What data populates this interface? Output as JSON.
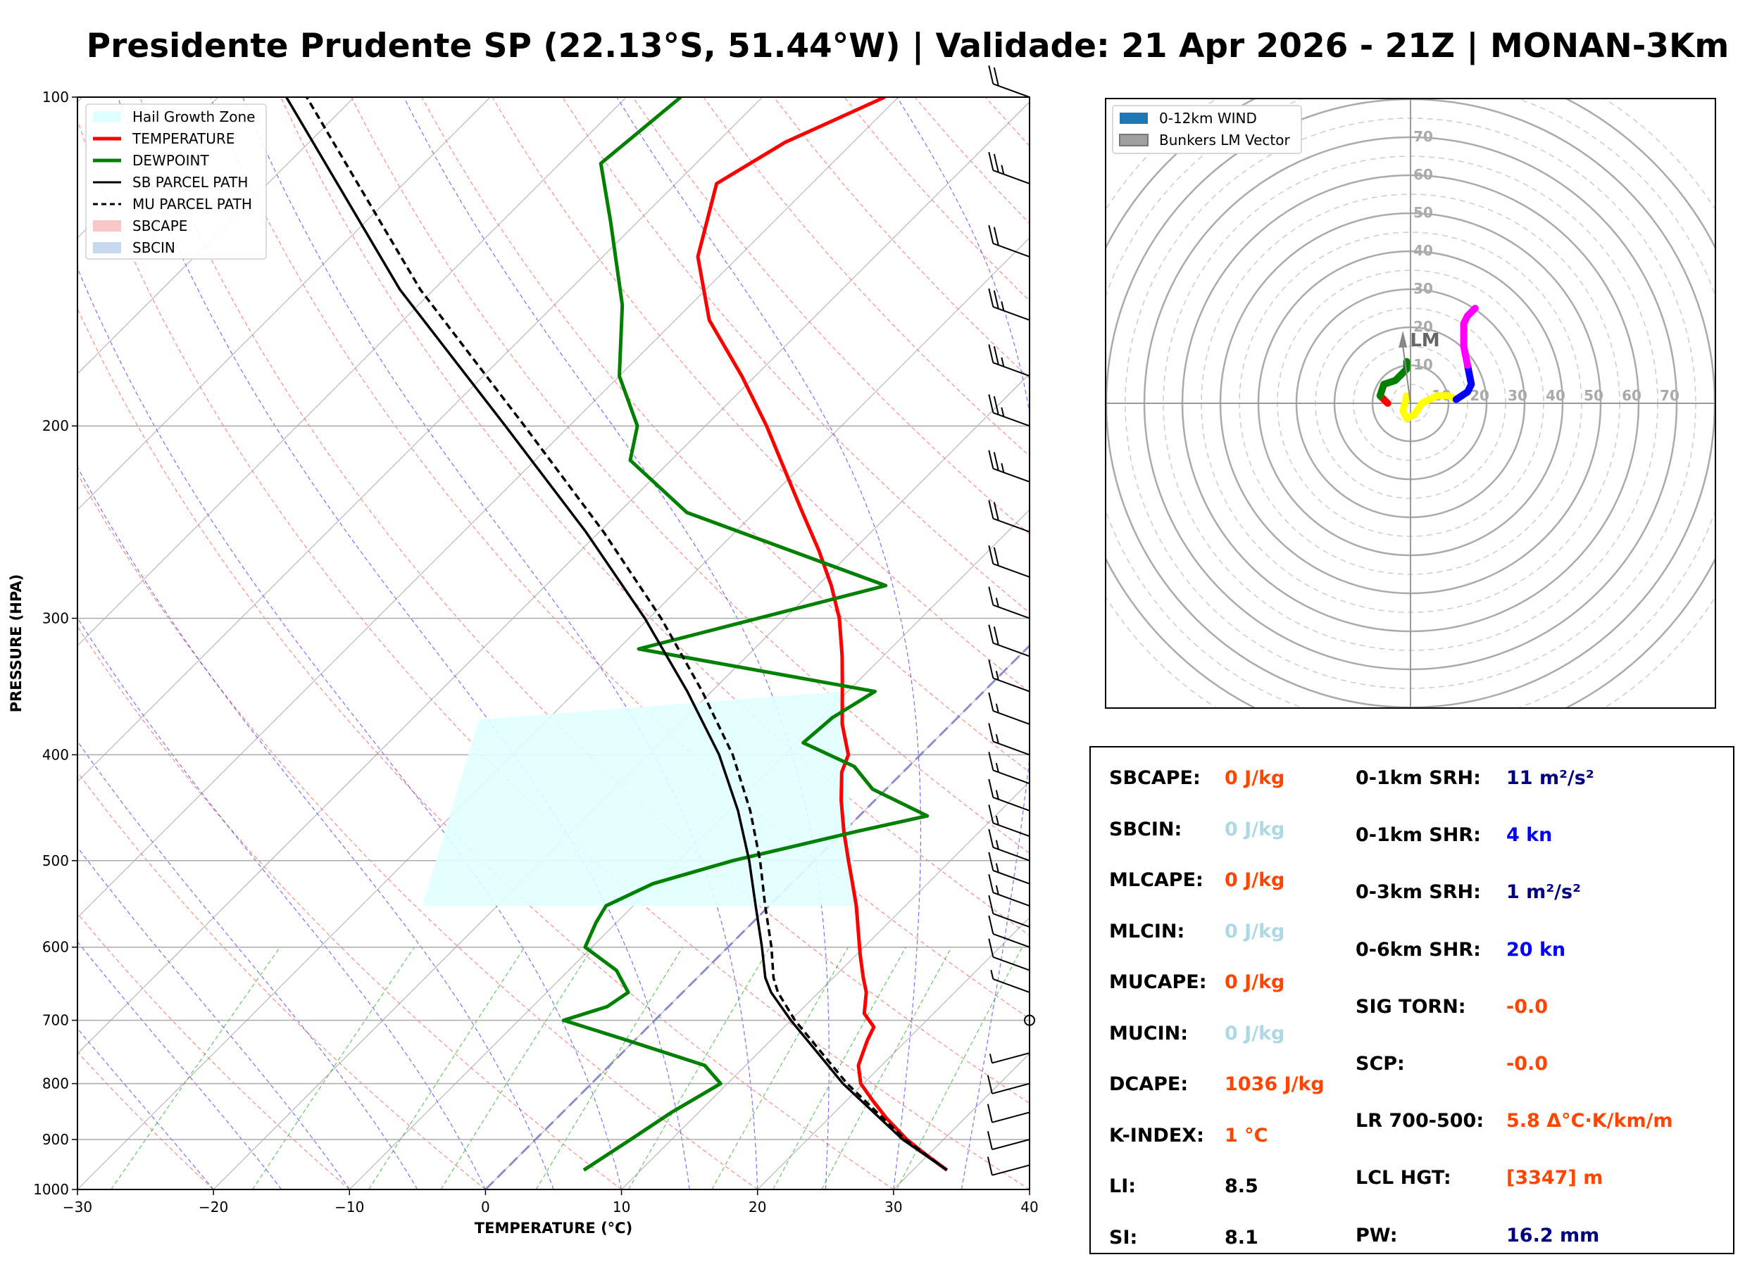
{
  "title": "Presidente Prudente SP (22.13°S, 51.44°W) | Validade: 21 Apr 2026 - 21Z | MONAN-3Km",
  "chart_data": [
    {
      "type": "skew-t",
      "xlabel": "TEMPERATURE (°C)",
      "ylabel": "PRESSURE (HPA)",
      "xlim": [
        -30,
        40
      ],
      "ylim": [
        1000,
        100
      ],
      "y_scale": "log",
      "x_ticks": [
        -30,
        -20,
        -10,
        0,
        10,
        20,
        30,
        40
      ],
      "y_ticks": [
        100,
        200,
        300,
        400,
        500,
        600,
        700,
        800,
        900,
        1000
      ],
      "grid": true,
      "legend_position": "top-left",
      "legend": [
        {
          "label": "Hail Growth Zone",
          "color": "#e0ffff"
        },
        {
          "label": "TEMPERATURE",
          "color": "#ff0000"
        },
        {
          "label": "DEWPOINT",
          "color": "#008000"
        },
        {
          "label": "SB PARCEL PATH",
          "color": "#000000"
        },
        {
          "label": "MU PARCEL PATH",
          "color": "#000000"
        },
        {
          "label": "SBCAPE",
          "color": "#f7c6c6"
        },
        {
          "label": "SBCIN",
          "color": "#c6d9ec"
        }
      ],
      "series": [
        {
          "name": "TEMPERATURE",
          "color": "#ff0000",
          "points": [
            [
              960,
              32.5
            ],
            [
              930,
              29.9
            ],
            [
              900,
              27.3
            ],
            [
              860,
              24.2
            ],
            [
              830,
              22.0
            ],
            [
              800,
              19.8
            ],
            [
              770,
              18.3
            ],
            [
              750,
              17.7
            ],
            [
              730,
              17.1
            ],
            [
              710,
              16.6
            ],
            [
              690,
              14.9
            ],
            [
              660,
              13.5
            ],
            [
              640,
              12.2
            ],
            [
              610,
              10.3
            ],
            [
              580,
              8.4
            ],
            [
              550,
              6.4
            ],
            [
              525,
              4.5
            ],
            [
              500,
              2.5
            ],
            [
              470,
              0.0
            ],
            [
              440,
              -2.5
            ],
            [
              415,
              -4.5
            ],
            [
              400,
              -5.3
            ],
            [
              375,
              -8.0
            ],
            [
              345,
              -10.9
            ],
            [
              325,
              -13.0
            ],
            [
              300,
              -16.0
            ],
            [
              280,
              -19.0
            ],
            [
              260,
              -22.5
            ],
            [
              240,
              -26.5
            ],
            [
              220,
              -30.8
            ],
            [
              200,
              -35.5
            ],
            [
              180,
              -41.0
            ],
            [
              160,
              -47.5
            ],
            [
              140,
              -53.0
            ],
            [
              120,
              -57.0
            ],
            [
              110,
              -55.0
            ],
            [
              100,
              -51.0
            ]
          ]
        },
        {
          "name": "DEWPOINT",
          "color": "#008000",
          "points": [
            [
              960,
              5.8
            ],
            [
              900,
              7.0
            ],
            [
              850,
              8.0
            ],
            [
              800,
              9.5
            ],
            [
              770,
              7.0
            ],
            [
              730,
              -0.6
            ],
            [
              700,
              -6.7
            ],
            [
              680,
              -4.5
            ],
            [
              660,
              -4.0
            ],
            [
              630,
              -6.5
            ],
            [
              600,
              -10.5
            ],
            [
              570,
              -11.5
            ],
            [
              550,
              -12.0
            ],
            [
              525,
              -10.2
            ],
            [
              500,
              -6.0
            ],
            [
              470,
              1.0
            ],
            [
              455,
              5.0
            ],
            [
              430,
              -1.0
            ],
            [
              410,
              -4.0
            ],
            [
              390,
              -9.5
            ],
            [
              370,
              -9.2
            ],
            [
              350,
              -8.0
            ],
            [
              320,
              -28.5
            ],
            [
              280,
              -15.0
            ],
            [
              240,
              -35.0
            ],
            [
              215,
              -43.0
            ],
            [
              200,
              -45.0
            ],
            [
              180,
              -50.0
            ],
            [
              155,
              -55.0
            ],
            [
              130,
              -62.0
            ],
            [
              115,
              -67.0
            ],
            [
              100,
              -66.0
            ]
          ]
        },
        {
          "name": "SB PARCEL PATH",
          "color": "#000000",
          "style": "solid",
          "points": [
            [
              960,
              32.5
            ],
            [
              900,
              27.0
            ],
            [
              800,
              18.5
            ],
            [
              700,
              10.0
            ],
            [
              660,
              6.5
            ],
            [
              640,
              5.0
            ],
            [
              600,
              2.5
            ],
            [
              550,
              -1.0
            ],
            [
              500,
              -4.8
            ],
            [
              450,
              -9.3
            ],
            [
              400,
              -14.8
            ],
            [
              350,
              -21.8
            ],
            [
              300,
              -30.3
            ],
            [
              250,
              -41.0
            ],
            [
              200,
              -54.7
            ],
            [
              150,
              -72.5
            ],
            [
              100,
              -95.0
            ]
          ]
        },
        {
          "name": "MU PARCEL PATH",
          "color": "#000000",
          "style": "dashed",
          "points": [
            [
              960,
              32.5
            ],
            [
              900,
              27.2
            ],
            [
              800,
              18.8
            ],
            [
              700,
              10.3
            ],
            [
              660,
              7.0
            ],
            [
              640,
              5.6
            ],
            [
              600,
              3.2
            ],
            [
              550,
              -0.3
            ],
            [
              500,
              -4.0
            ],
            [
              450,
              -8.4
            ],
            [
              400,
              -13.8
            ],
            [
              350,
              -20.7
            ],
            [
              300,
              -29.1
            ],
            [
              250,
              -39.7
            ],
            [
              200,
              -53.3
            ],
            [
              150,
              -71.0
            ],
            [
              100,
              -93.5
            ]
          ]
        }
      ],
      "hail_growth_zone": {
        "p_bottom": 550,
        "p_top": 350
      }
    },
    {
      "type": "hodograph",
      "rings": [
        10,
        20,
        30,
        40,
        50,
        60,
        70
      ],
      "units": "kn",
      "legend_position": "top-left",
      "legend": [
        {
          "label": "0-12km WIND",
          "color": "#1f77b4"
        },
        {
          "label": "Bunkers LM Vector",
          "color": "#a0a0a0"
        }
      ],
      "lm_label": "LM",
      "lm_vector": {
        "u": -2,
        "v": 18
      },
      "segments": [
        {
          "color": "#ff0000",
          "points": [
            [
              -6,
              0
            ],
            [
              -8,
              2
            ]
          ]
        },
        {
          "color": "#008000",
          "points": [
            [
              -8,
              2
            ],
            [
              -7,
              5
            ],
            [
              -4,
              6
            ],
            [
              -2,
              8
            ],
            [
              -1,
              9
            ],
            [
              -1,
              11
            ]
          ]
        },
        {
          "color": "#ffff00",
          "points": [
            [
              -1,
              2
            ],
            [
              -2,
              -2
            ],
            [
              -1,
              -4
            ],
            [
              1,
              -3
            ],
            [
              3,
              0
            ],
            [
              7,
              2
            ],
            [
              10,
              2
            ],
            [
              12,
              1
            ]
          ]
        },
        {
          "color": "#0000ff",
          "points": [
            [
              12,
              1
            ],
            [
              15,
              3
            ],
            [
              16,
              5
            ],
            [
              15,
              10
            ]
          ]
        },
        {
          "color": "#ff00ff",
          "points": [
            [
              15,
              10
            ],
            [
              14,
              15
            ],
            [
              14,
              19
            ],
            [
              14,
              21
            ],
            [
              15,
              23
            ],
            [
              17,
              25
            ]
          ]
        }
      ]
    }
  ],
  "stats": {
    "left": [
      {
        "label": "SBCAPE:",
        "value": "0 J/kg",
        "color": "#ff4500"
      },
      {
        "label": "SBCIN:",
        "value": "0 J/kg",
        "color": "#add8e6"
      },
      {
        "label": "MLCAPE:",
        "value": "0 J/kg",
        "color": "#ff4500"
      },
      {
        "label": "MLCIN:",
        "value": "0 J/kg",
        "color": "#add8e6"
      },
      {
        "label": "MUCAPE:",
        "value": "0 J/kg",
        "color": "#ff4500"
      },
      {
        "label": "MUCIN:",
        "value": "0 J/kg",
        "color": "#add8e6"
      },
      {
        "label": "DCAPE:",
        "value": "1036 J/kg",
        "color": "#ff4500"
      },
      {
        "label": "K-INDEX:",
        "value": "1 °C",
        "color": "#ff4500"
      },
      {
        "label": "LI:",
        "value": "8.5",
        "color": "#000000"
      },
      {
        "label": "SI:",
        "value": "8.1",
        "color": "#000000"
      }
    ],
    "right": [
      {
        "label": "0-1km SRH:",
        "value": "11 m²/s²",
        "color": "#000080"
      },
      {
        "label": "0-1km SHR:",
        "value": "4 kn",
        "color": "#0000ff"
      },
      {
        "label": "0-3km SRH:",
        "value": "1 m²/s²",
        "color": "#000080"
      },
      {
        "label": "0-6km SHR:",
        "value": "20 kn",
        "color": "#0000ff"
      },
      {
        "label": "SIG TORN:",
        "value": "-0.0",
        "color": "#ff4500"
      },
      {
        "label": "SCP:",
        "value": "-0.0",
        "color": "#ff4500"
      },
      {
        "label": "LR 700-500:",
        "value": "5.8 Δ°C·K/km/m",
        "color": "#ff4500"
      },
      {
        "label": "LCL HGT:",
        "value": "[3347] m",
        "color": "#ff4500"
      },
      {
        "label": "PW:",
        "value": "16.2 mm",
        "color": "#000080"
      }
    ]
  },
  "wind_barbs": [
    {
      "p": 100,
      "speed": 20
    },
    {
      "p": 120,
      "speed": 25
    },
    {
      "p": 140,
      "speed": 20
    },
    {
      "p": 160,
      "speed": 25
    },
    {
      "p": 180,
      "speed": 25
    },
    {
      "p": 200,
      "speed": 25
    },
    {
      "p": 225,
      "speed": 25
    },
    {
      "p": 250,
      "speed": 20
    },
    {
      "p": 275,
      "speed": 20
    },
    {
      "p": 300,
      "speed": 15
    },
    {
      "p": 325,
      "speed": 20
    },
    {
      "p": 350,
      "speed": 15
    },
    {
      "p": 375,
      "speed": 15
    },
    {
      "p": 400,
      "speed": 15
    },
    {
      "p": 425,
      "speed": 15
    },
    {
      "p": 450,
      "speed": 15
    },
    {
      "p": 475,
      "speed": 15
    },
    {
      "p": 500,
      "speed": 15
    },
    {
      "p": 525,
      "speed": 15
    },
    {
      "p": 550,
      "speed": 15
    },
    {
      "p": 575,
      "speed": 10
    },
    {
      "p": 600,
      "speed": 10
    },
    {
      "p": 630,
      "speed": 10
    },
    {
      "p": 660,
      "speed": 5
    },
    {
      "p": 700,
      "speed": 0
    },
    {
      "p": 750,
      "speed": 5
    },
    {
      "p": 800,
      "speed": 10
    },
    {
      "p": 850,
      "speed": 10
    },
    {
      "p": 900,
      "speed": 10
    },
    {
      "p": 950,
      "speed": 10
    }
  ]
}
